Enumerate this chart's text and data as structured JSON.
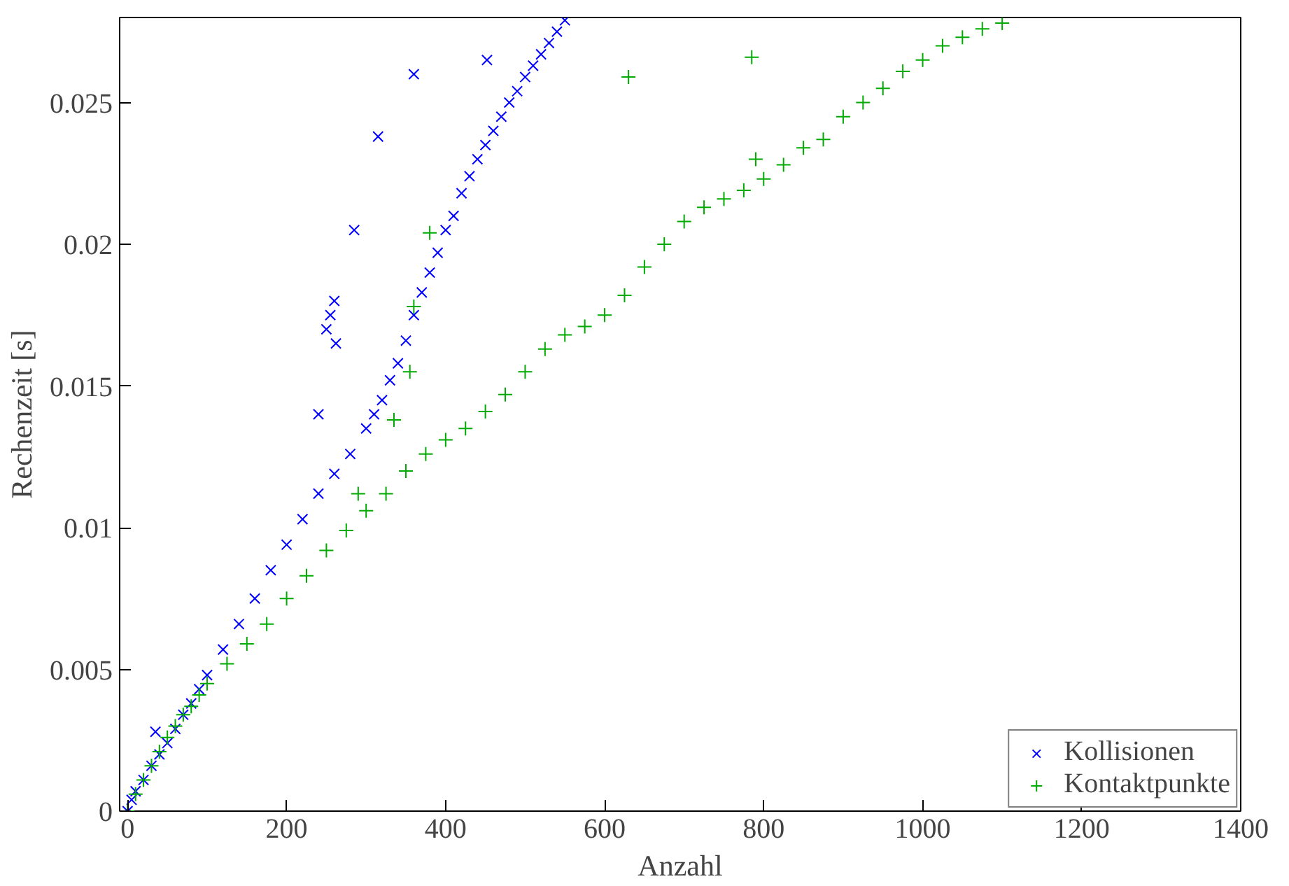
{
  "chart_data": {
    "type": "scatter",
    "xlabel": "Anzahl",
    "ylabel": "Rechenzeit [s]",
    "xlim": [
      -10,
      1400
    ],
    "ylim": [
      0,
      0.028
    ],
    "xticks": [
      0,
      200,
      400,
      600,
      800,
      1000,
      1200,
      1400
    ],
    "yticks": [
      0,
      0.005,
      0.01,
      0.015,
      0.02,
      0.025
    ],
    "grid": false,
    "legend": "bottom right",
    "series": [
      {
        "name": "Kollisionen",
        "color": "#0000ff",
        "marker": "x",
        "x": [
          0,
          5,
          10,
          20,
          30,
          40,
          50,
          60,
          70,
          80,
          90,
          100,
          120,
          140,
          160,
          180,
          200,
          220,
          240,
          260,
          280,
          300,
          310,
          320,
          330,
          340,
          350,
          360,
          370,
          380,
          390,
          400,
          410,
          420,
          430,
          440,
          450,
          460,
          470,
          480,
          490,
          500,
          510,
          520,
          530,
          540,
          550,
          240,
          250,
          255,
          260,
          262,
          285,
          315,
          360,
          452,
          35
        ],
        "values": [
          0,
          0.0004,
          0.0007,
          0.0011,
          0.0016,
          0.002,
          0.0024,
          0.0029,
          0.0034,
          0.0038,
          0.0043,
          0.0048,
          0.0057,
          0.0066,
          0.0075,
          0.0085,
          0.0094,
          0.0103,
          0.0112,
          0.0119,
          0.0126,
          0.0135,
          0.014,
          0.0145,
          0.0152,
          0.0158,
          0.0166,
          0.0175,
          0.0183,
          0.019,
          0.0197,
          0.0205,
          0.021,
          0.0218,
          0.0224,
          0.023,
          0.0235,
          0.024,
          0.0245,
          0.025,
          0.0254,
          0.0259,
          0.0263,
          0.0267,
          0.0271,
          0.0275,
          0.0279,
          0.014,
          0.017,
          0.0175,
          0.018,
          0.0165,
          0.0205,
          0.0238,
          0.026,
          0.0265,
          0.0028
        ]
      },
      {
        "name": "Kontaktpunkte",
        "color": "#00aa00",
        "marker": "cross",
        "x": [
          0,
          10,
          20,
          30,
          40,
          50,
          60,
          70,
          80,
          90,
          100,
          125,
          150,
          175,
          200,
          225,
          250,
          275,
          300,
          325,
          350,
          375,
          400,
          425,
          450,
          475,
          500,
          525,
          550,
          575,
          600,
          625,
          650,
          675,
          700,
          725,
          750,
          775,
          800,
          825,
          850,
          875,
          900,
          925,
          950,
          975,
          1000,
          1025,
          1050,
          1075,
          1100,
          380,
          630,
          785,
          360,
          355,
          335,
          290,
          790
        ],
        "values": [
          0,
          0.0006,
          0.0011,
          0.0016,
          0.0021,
          0.0026,
          0.003,
          0.0034,
          0.0037,
          0.0041,
          0.0045,
          0.0052,
          0.0059,
          0.0066,
          0.0075,
          0.0083,
          0.0092,
          0.0099,
          0.0106,
          0.0112,
          0.012,
          0.0126,
          0.0131,
          0.0135,
          0.0141,
          0.0147,
          0.0155,
          0.0163,
          0.0168,
          0.0171,
          0.0175,
          0.0182,
          0.0192,
          0.02,
          0.0208,
          0.0213,
          0.0216,
          0.0219,
          0.0223,
          0.0228,
          0.0234,
          0.0237,
          0.0245,
          0.025,
          0.0255,
          0.0261,
          0.0265,
          0.027,
          0.0273,
          0.0276,
          0.0278,
          0.0204,
          0.0259,
          0.0266,
          0.0178,
          0.0155,
          0.0138,
          0.0112,
          0.023
        ]
      }
    ]
  }
}
